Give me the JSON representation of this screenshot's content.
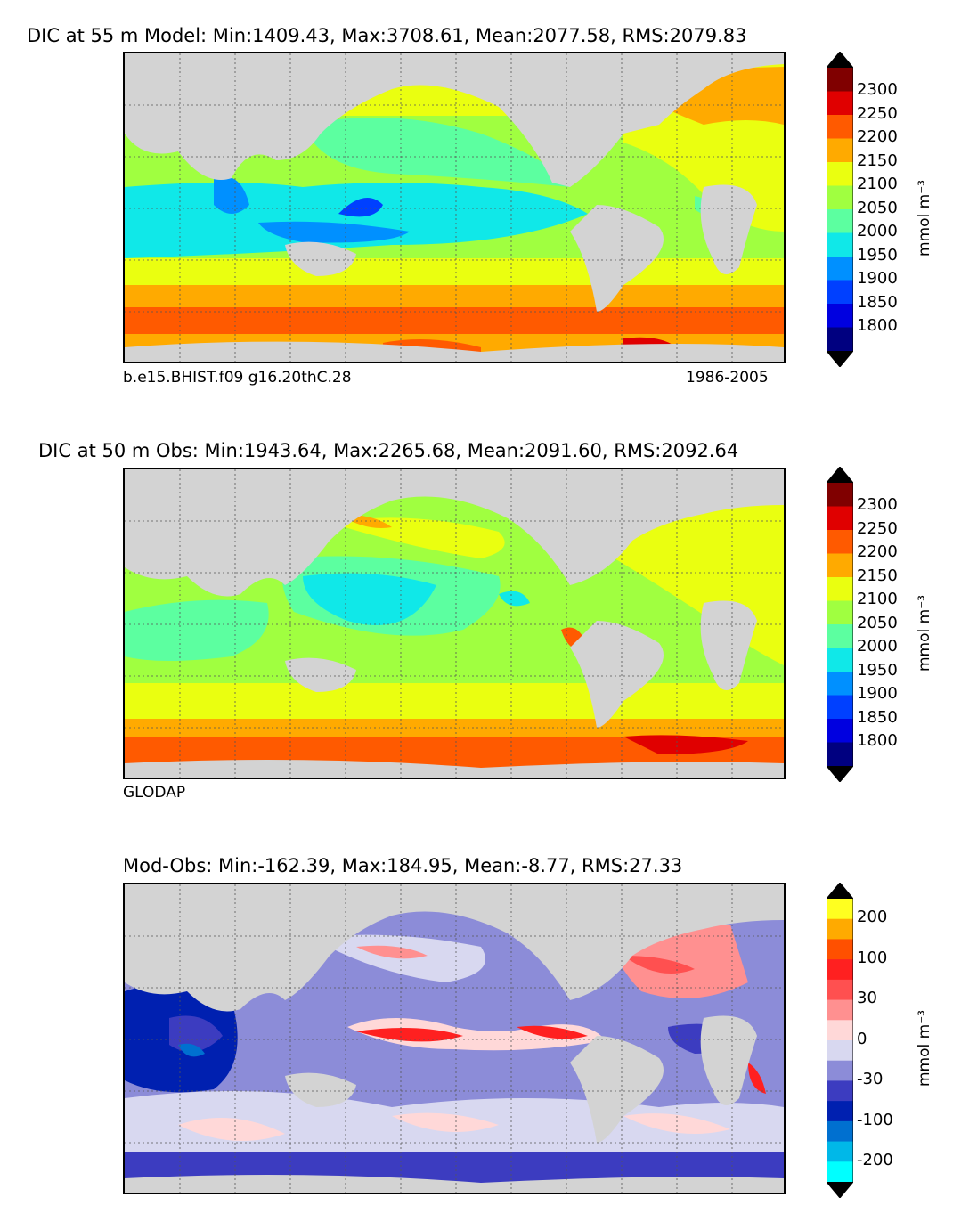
{
  "panels": [
    {
      "title": "DIC at 55 m Model: Min:1409.43, Max:3708.61, Mean:2077.58, RMS:2079.83",
      "left_label": "b.e15.BHIST.f09 g16.20thC.28",
      "right_label": "1986-2005",
      "colorbar": {
        "ticks": [
          "2300",
          "2250",
          "2200",
          "2150",
          "2100",
          "2050",
          "2000",
          "1950",
          "1900",
          "1850",
          "1800"
        ],
        "unit": "mmol m⁻³",
        "colors": [
          "#800000",
          "#e00000",
          "#ff5a00",
          "#ffaa00",
          "#eaff10",
          "#a0ff40",
          "#5cffa0",
          "#10e8e8",
          "#0090ff",
          "#0040ff",
          "#0000e0",
          "#000080"
        ]
      }
    },
    {
      "title": "DIC at 50 m Obs: Min:1943.64, Max:2265.68, Mean:2091.60, RMS:2092.64",
      "left_label": "GLODAP",
      "colorbar": {
        "ticks": [
          "2300",
          "2250",
          "2200",
          "2150",
          "2100",
          "2050",
          "2000",
          "1950",
          "1900",
          "1850",
          "1800"
        ],
        "unit": "mmol m⁻³",
        "colors": [
          "#800000",
          "#e00000",
          "#ff5a00",
          "#ffaa00",
          "#eaff10",
          "#a0ff40",
          "#5cffa0",
          "#10e8e8",
          "#0090ff",
          "#0040ff",
          "#0000e0",
          "#000080"
        ]
      }
    },
    {
      "title": "Mod-Obs: Min:-162.39, Max:184.95, Mean:-8.77, RMS:27.33",
      "colorbar": {
        "ticks": [
          "200",
          "100",
          "30",
          "0",
          "-30",
          "-100",
          "-200"
        ],
        "unit": "mmol m⁻³",
        "colors": [
          "#ffff20",
          "#ffaa00",
          "#ff5000",
          "#ff2020",
          "#ff5050",
          "#ff9090",
          "#ffd8d8",
          "#d8d8f0",
          "#8c8cd8",
          "#3c3cc0",
          "#0020b0",
          "#0070d0",
          "#00b8e8",
          "#00ffff"
        ]
      }
    }
  ]
}
